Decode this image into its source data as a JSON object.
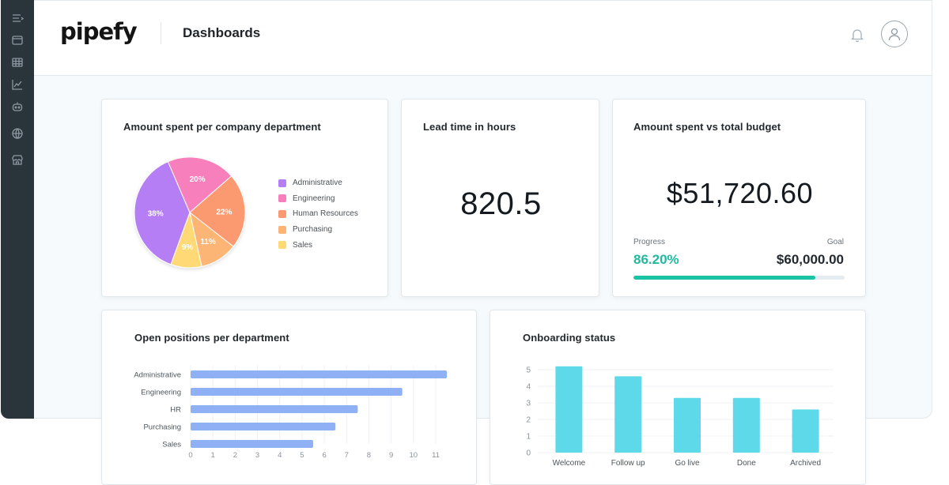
{
  "app": {
    "logo": "pipefy",
    "page_title": "Dashboards"
  },
  "sidebar": {
    "icons": [
      "menu-icon",
      "window-icon",
      "table-icon",
      "trend-chart-icon",
      "robot-icon",
      "globe-icon",
      "store-icon"
    ]
  },
  "cards": {
    "spend_by_department": {
      "title": "Amount spent per company department",
      "chart_data": {
        "type": "pie",
        "slices": [
          {
            "label": "Administrative",
            "value": 38,
            "display": "38%",
            "color": "#b57ef5"
          },
          {
            "label": "Engineering",
            "value": 20,
            "display": "20%",
            "color": "#f77fbc"
          },
          {
            "label": "Human Resources",
            "value": 22,
            "display": "22%",
            "color": "#fb9a70"
          },
          {
            "label": "Purchasing",
            "value": 11,
            "display": "11%",
            "color": "#fdb575"
          },
          {
            "label": "Sales",
            "value": 9,
            "display": "9%",
            "color": "#fed974"
          }
        ],
        "legend": "right"
      }
    },
    "lead_time": {
      "title": "Lead time in hours",
      "value": "820.5"
    },
    "budget": {
      "title": "Amount spent vs total budget",
      "amount": "$51,720.60",
      "progress_label": "Progress",
      "goal_label": "Goal",
      "progress_pct": "86.20%",
      "progress_value": 0.862,
      "goal": "$60,000.00",
      "color": "#1bc3a5"
    },
    "open_positions": {
      "title": "Open positions per department",
      "chart_data": {
        "type": "bar",
        "orientation": "horizontal",
        "categories": [
          "Administrative",
          "Engineering",
          "HR",
          "Purchasing",
          "Sales"
        ],
        "values": [
          11.5,
          9.5,
          7.5,
          6.5,
          5.5
        ],
        "xlim": [
          0,
          11
        ],
        "xticks": [
          0,
          1,
          2,
          3,
          4,
          5,
          6,
          7,
          8,
          9,
          10,
          11
        ],
        "grid": true,
        "color": "#8fb0f5"
      }
    },
    "onboarding": {
      "title": "Onboarding status",
      "chart_data": {
        "type": "bar",
        "categories": [
          "Welcome",
          "Follow up",
          "Go live",
          "Done",
          "Archived"
        ],
        "values": [
          5.2,
          4.6,
          3.3,
          3.3,
          2.6
        ],
        "ylim": [
          0,
          5
        ],
        "yticks": [
          0,
          1,
          2,
          3,
          4,
          5
        ],
        "grid": true,
        "color": "#5dd9ea"
      }
    }
  }
}
